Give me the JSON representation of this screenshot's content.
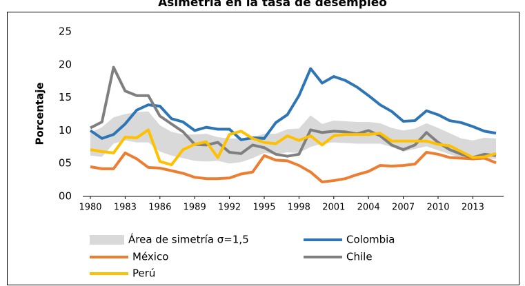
{
  "chart_data": {
    "type": "line",
    "title": "Asimetría en la tasa de desempleo",
    "y_label": "Porcentaje",
    "x": [
      1980,
      1981,
      1982,
      1983,
      1984,
      1985,
      1986,
      1987,
      1988,
      1989,
      1990,
      1991,
      1992,
      1993,
      1994,
      1995,
      1996,
      1997,
      1998,
      1999,
      2000,
      2001,
      2002,
      2003,
      2004,
      2005,
      2006,
      2007,
      2008,
      2009,
      2010,
      2011,
      2012,
      2013,
      2014,
      2015
    ],
    "xlim": [
      1980,
      2015
    ],
    "xticks": [
      1980,
      1983,
      1986,
      1989,
      1992,
      1995,
      1998,
      2001,
      2004,
      2007,
      2010,
      2013
    ],
    "ylim": [
      0,
      25
    ],
    "yticks": [
      {
        "value": 0,
        "label": "00"
      },
      {
        "value": 5,
        "label": "05"
      },
      10,
      15,
      20,
      25
    ],
    "band": {
      "name": "Área de simetría σ=1,5",
      "color": "#d9d9d9",
      "upper": [
        9.7,
        10.5,
        12.0,
        12.5,
        12.8,
        12.9,
        10.8,
        9.8,
        9.4,
        9.4,
        9.5,
        9.0,
        8.8,
        8.8,
        9.0,
        9.5,
        9.5,
        10.2,
        10.3,
        12.3,
        11.0,
        11.5,
        11.4,
        11.3,
        11.3,
        11.1,
        10.4,
        10.0,
        10.3,
        11.1,
        10.4,
        9.6,
        8.8,
        8.5,
        8.9,
        8.8
      ],
      "lower": [
        6.2,
        6.0,
        8.0,
        8.5,
        8.2,
        8.2,
        6.8,
        6.2,
        5.8,
        5.4,
        5.3,
        5.4,
        5.0,
        5.2,
        5.8,
        6.6,
        6.4,
        6.7,
        6.6,
        7.5,
        8.0,
        8.2,
        8.1,
        8.0,
        8.0,
        8.0,
        7.5,
        6.8,
        7.2,
        7.6,
        7.0,
        6.4,
        5.8,
        5.5,
        5.7,
        5.7
      ]
    },
    "series": [
      {
        "name": "Colombia",
        "color": "#2e75b6",
        "values": [
          10.0,
          8.8,
          9.4,
          11.0,
          13.1,
          13.9,
          13.7,
          11.8,
          11.3,
          10.0,
          10.5,
          10.2,
          10.2,
          8.6,
          8.9,
          8.8,
          11.2,
          12.4,
          15.3,
          19.4,
          17.2,
          18.2,
          17.6,
          16.6,
          15.3,
          13.9,
          12.9,
          11.4,
          11.5,
          13.0,
          12.4,
          11.5,
          11.2,
          10.6,
          9.9,
          9.6
        ]
      },
      {
        "name": "México",
        "color": "#ed7d31",
        "values": [
          4.5,
          4.2,
          4.2,
          6.6,
          5.7,
          4.4,
          4.3,
          3.9,
          3.5,
          2.9,
          2.7,
          2.7,
          2.8,
          3.4,
          3.7,
          6.2,
          5.5,
          5.4,
          4.7,
          3.7,
          2.2,
          2.4,
          2.7,
          3.3,
          3.8,
          4.7,
          4.6,
          4.7,
          4.9,
          6.7,
          6.4,
          5.9,
          5.8,
          5.7,
          5.8,
          5.1
        ]
      },
      {
        "name": "Chile",
        "color": "#7f7f7f",
        "values": [
          10.4,
          11.3,
          19.6,
          16.0,
          15.3,
          15.3,
          12.2,
          11.0,
          9.8,
          7.9,
          7.8,
          8.2,
          6.7,
          6.5,
          7.8,
          7.4,
          6.4,
          6.1,
          6.4,
          10.1,
          9.7,
          9.9,
          9.8,
          9.5,
          10.0,
          9.2,
          7.8,
          7.1,
          7.8,
          9.7,
          8.2,
          7.1,
          6.4,
          5.9,
          6.4,
          6.2
        ]
      },
      {
        "name": "Perú",
        "color": "#ffc000",
        "values": [
          7.1,
          6.8,
          6.6,
          9.0,
          8.9,
          10.1,
          5.3,
          4.8,
          7.1,
          7.9,
          8.3,
          5.9,
          9.4,
          9.9,
          8.8,
          8.2,
          8.0,
          9.2,
          8.5,
          9.2,
          7.8,
          9.2,
          9.4,
          9.4,
          9.4,
          9.6,
          8.4,
          8.4,
          8.4,
          8.4,
          7.9,
          7.7,
          6.8,
          5.9,
          6.0,
          6.5
        ]
      }
    ]
  }
}
